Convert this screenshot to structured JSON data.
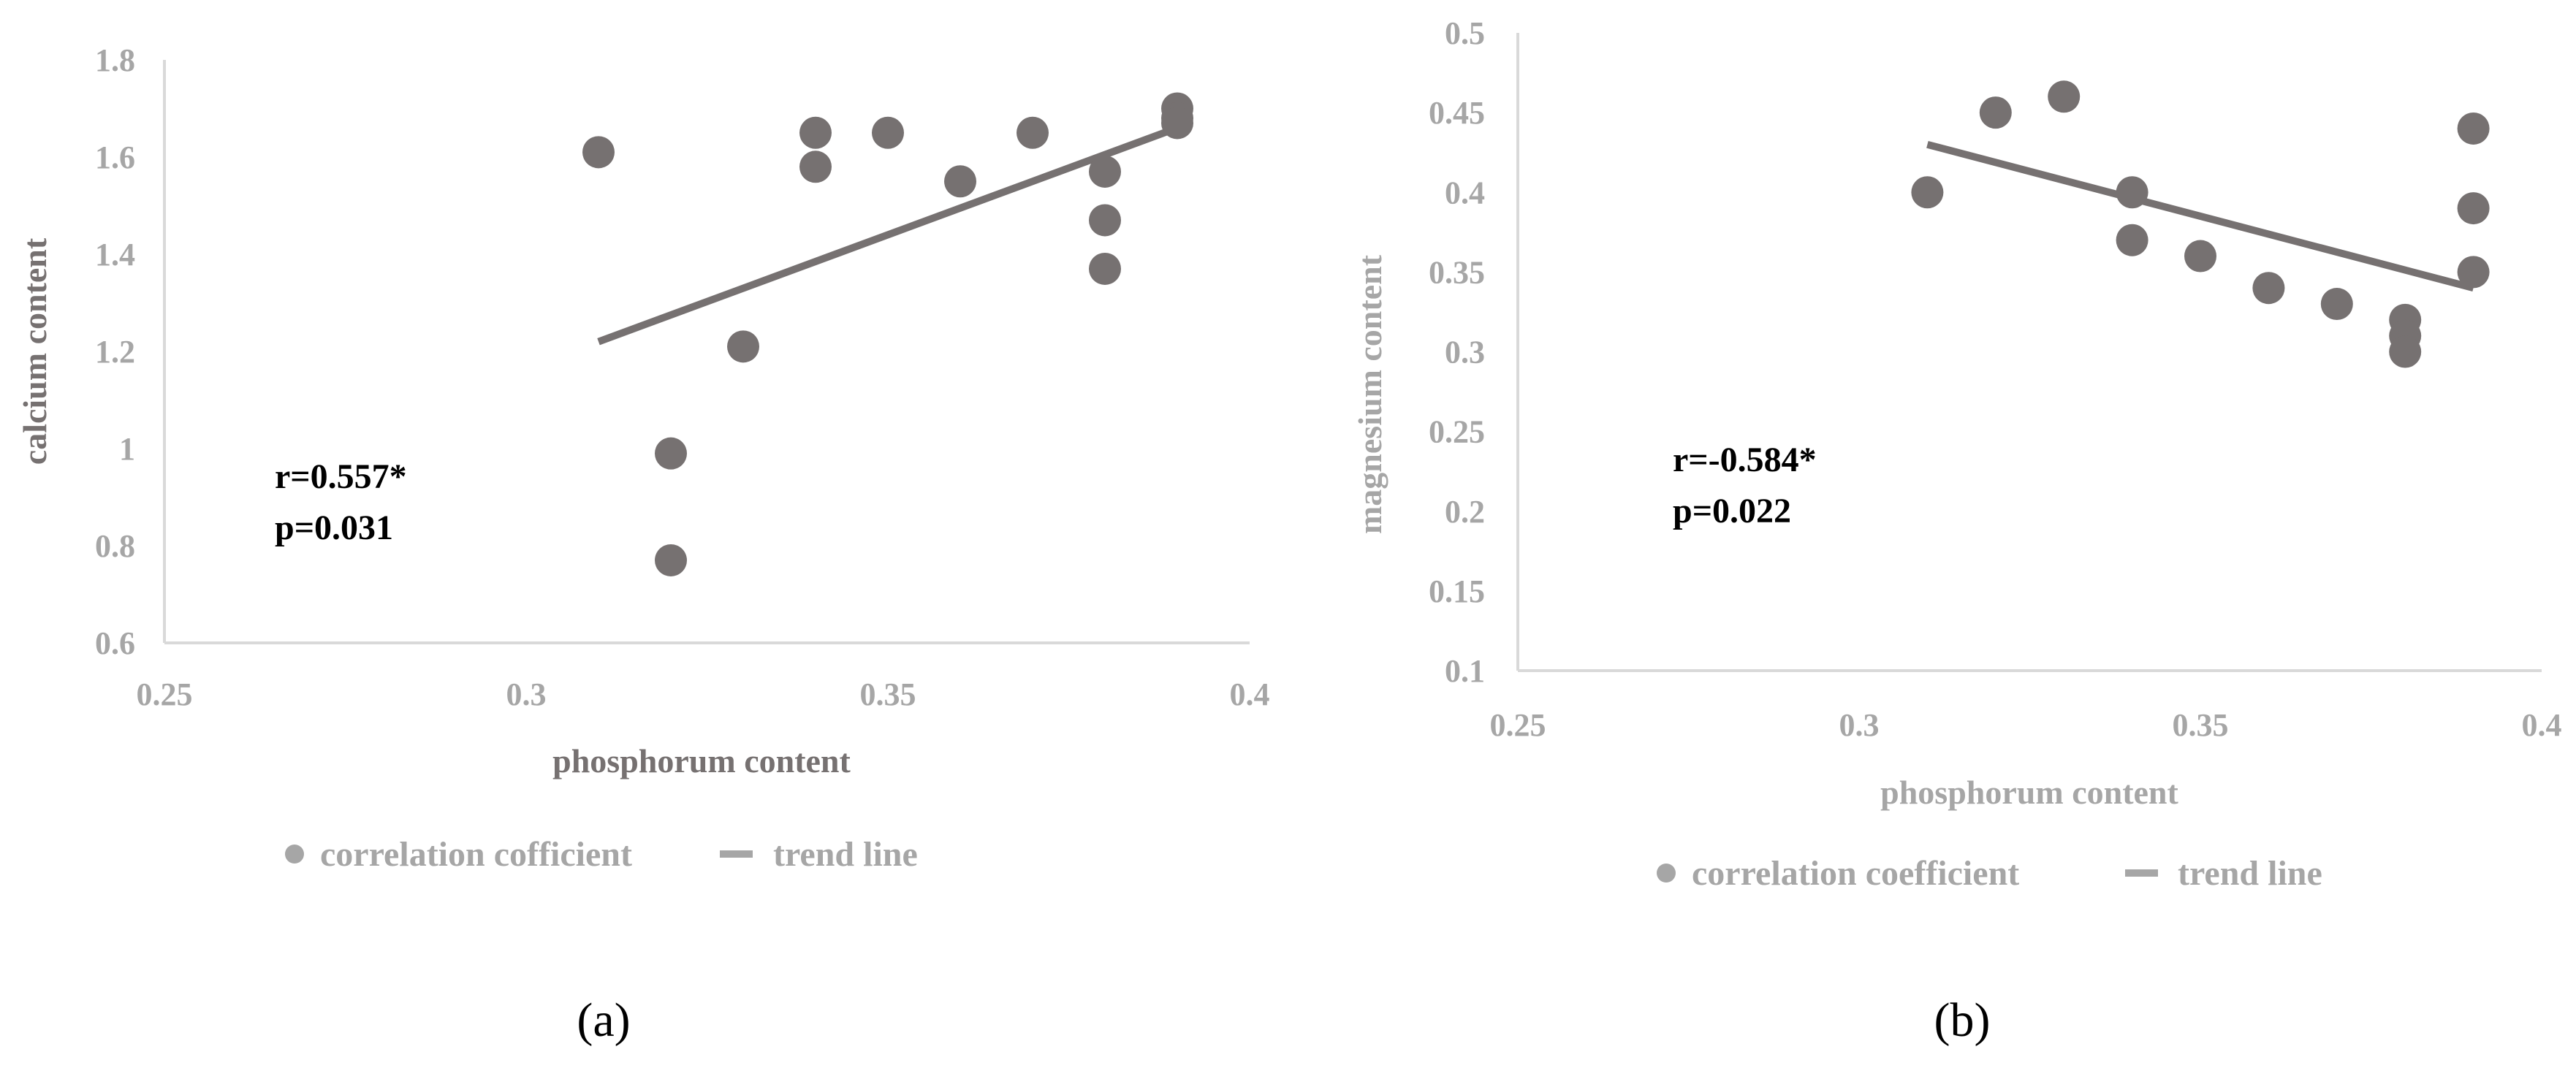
{
  "chart_data": [
    {
      "type": "scatter",
      "xlabel": "phosphorum content",
      "ylabel": "calcium content",
      "xlim": [
        0.25,
        0.4
      ],
      "ylim": [
        0.6,
        1.8
      ],
      "x_ticks": [
        "0.25",
        "0.3",
        "0.35",
        "0.4"
      ],
      "y_ticks": [
        "0.6",
        "0.8",
        "1",
        "1.2",
        "1.4",
        "1.6",
        "1.8"
      ],
      "series": [
        {
          "name": "correlation cofficient",
          "kind": "scatter",
          "x": [
            0.31,
            0.32,
            0.32,
            0.33,
            0.34,
            0.34,
            0.35,
            0.36,
            0.37,
            0.38,
            0.38,
            0.38,
            0.39,
            0.39,
            0.39
          ],
          "y": [
            1.61,
            0.99,
            0.77,
            1.21,
            1.65,
            1.58,
            1.65,
            1.55,
            1.65,
            1.57,
            1.47,
            1.37,
            1.7,
            1.68,
            1.67
          ]
        },
        {
          "name": "trend line",
          "kind": "line",
          "x": [
            0.31,
            0.39
          ],
          "y": [
            1.22,
            1.66
          ]
        }
      ],
      "annotations": [
        "r=0.557*",
        "p=0.031"
      ],
      "panel_label": "(a)",
      "grid": false,
      "legend_position": "bottom",
      "colors": {
        "points": "#767171",
        "trend": "#767171",
        "axis": "#d9d9d9",
        "ticks": "#a6a6a6",
        "title": "#767171"
      }
    },
    {
      "type": "scatter",
      "xlabel": "phosphorum content",
      "ylabel": "magnesium content",
      "xlim": [
        0.25,
        0.4
      ],
      "ylim": [
        0.1,
        0.5
      ],
      "x_ticks": [
        "0.25",
        "0.3",
        "0.35",
        "0.4"
      ],
      "y_ticks": [
        "0.1",
        "0.15",
        "0.2",
        "0.25",
        "0.3",
        "0.35",
        "0.4",
        "0.45",
        "0.5"
      ],
      "series": [
        {
          "name": "correlation coefficient",
          "kind": "scatter",
          "x": [
            0.31,
            0.32,
            0.33,
            0.34,
            0.34,
            0.35,
            0.36,
            0.37,
            0.38,
            0.38,
            0.38,
            0.39,
            0.39,
            0.39
          ],
          "y": [
            0.4,
            0.45,
            0.46,
            0.4,
            0.37,
            0.36,
            0.34,
            0.33,
            0.32,
            0.31,
            0.3,
            0.44,
            0.39,
            0.35
          ]
        },
        {
          "name": "trend line",
          "kind": "line",
          "x": [
            0.31,
            0.39
          ],
          "y": [
            0.43,
            0.34
          ]
        }
      ],
      "annotations": [
        "r=-0.584*",
        "p=0.022"
      ],
      "panel_label": "(b)",
      "grid": false,
      "legend_position": "bottom",
      "colors": {
        "points": "#767171",
        "trend": "#767171",
        "axis": "#d9d9d9",
        "ticks": "#a6a6a6",
        "title": "#a6a6a6"
      }
    }
  ]
}
